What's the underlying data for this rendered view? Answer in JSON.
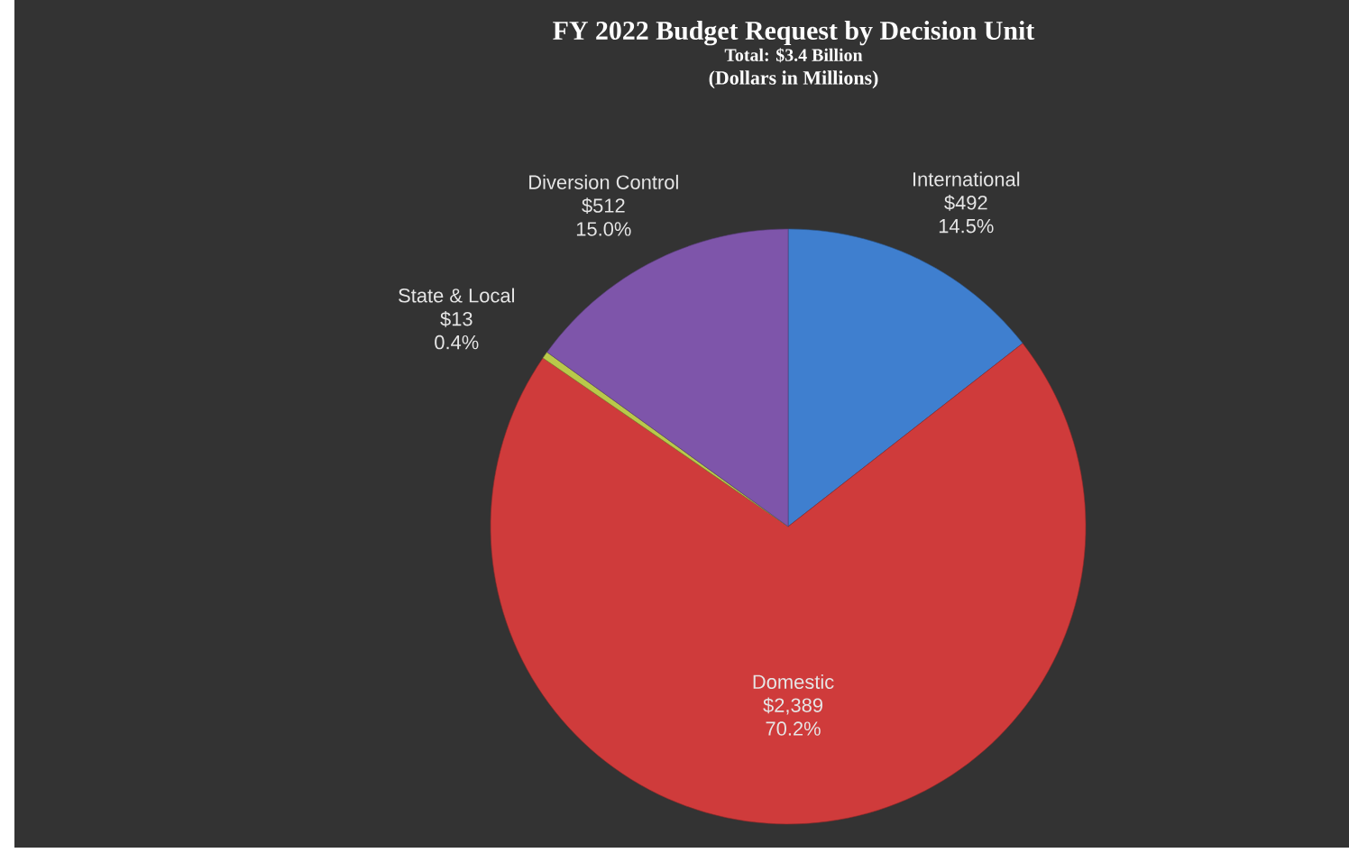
{
  "chart_data": {
    "type": "pie",
    "title": "FY 2022 Budget Request by Decision Unit",
    "subtitle": "Total: $3.4 Billion",
    "categories": [
      "International",
      "Domestic",
      "State & Local",
      "Diversion Control"
    ],
    "values": [
      492,
      2389,
      13,
      512
    ],
    "value_labels": [
      "$492",
      "$2,389",
      "$13",
      "$512"
    ],
    "colors": [
      "#3f7fcf",
      "#cf3b3b",
      "#b9c94a",
      "#7e55aa"
    ],
    "annotations": [
      "(Dollars in Millions)",
      "14.5%",
      "70.2%",
      "0.4%",
      "15.0%"
    ]
  }
}
